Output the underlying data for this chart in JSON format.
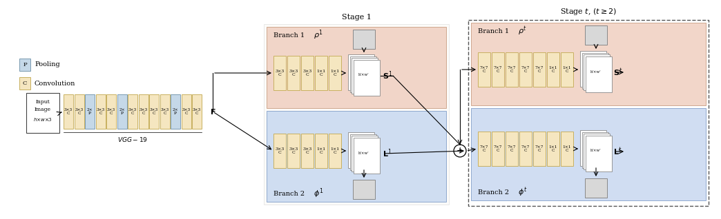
{
  "pool_color": "#c5d8e8",
  "conv_color": "#f5e6c0",
  "pool_border": "#7a9ab0",
  "conv_border": "#c8b060",
  "branch1_bg": "#f0cfc0",
  "branch2_bg": "#c8d8f0",
  "legend_pooling": "Pooling",
  "legend_conv": "Convolution",
  "title_stage1": "Stage 1",
  "title_stage2": "Stage $t$, $(t \\geq 2)$",
  "vgg_blocks": [
    {
      "label": "3×3\nC",
      "type": "conv"
    },
    {
      "label": "3×3\nC",
      "type": "conv"
    },
    {
      "label": "2×\nP",
      "type": "pool"
    },
    {
      "label": "3×3\nC",
      "type": "conv"
    },
    {
      "label": "3×3\nC",
      "type": "conv"
    },
    {
      "label": "2×\nP",
      "type": "pool"
    },
    {
      "label": "3×3\nC",
      "type": "conv"
    },
    {
      "label": "3×3\nC",
      "type": "conv"
    },
    {
      "label": "3×3\nC",
      "type": "conv"
    },
    {
      "label": "3×3\nC",
      "type": "conv"
    },
    {
      "label": "2×\nP",
      "type": "pool"
    },
    {
      "label": "3×3\nC",
      "type": "conv"
    },
    {
      "label": "3×3\nC",
      "type": "conv"
    }
  ],
  "s1b1_blocks": [
    {
      "label": "3×3\nC",
      "type": "conv"
    },
    {
      "label": "3×3\nC",
      "type": "conv"
    },
    {
      "label": "3×3\nC",
      "type": "conv"
    },
    {
      "label": "1×1\nC",
      "type": "conv"
    },
    {
      "label": "1×1\nC",
      "type": "conv"
    }
  ],
  "s1b2_blocks": [
    {
      "label": "3×3\nC",
      "type": "conv"
    },
    {
      "label": "3×3\nC",
      "type": "conv"
    },
    {
      "label": "3×3\nC",
      "type": "conv"
    },
    {
      "label": "1×1\nC",
      "type": "conv"
    },
    {
      "label": "1×1\nC",
      "type": "conv"
    }
  ],
  "s2b1_blocks": [
    {
      "label": "7×7\nC",
      "type": "conv"
    },
    {
      "label": "7×7\nC",
      "type": "conv"
    },
    {
      "label": "7×7\nC",
      "type": "conv"
    },
    {
      "label": "7×7\nC",
      "type": "conv"
    },
    {
      "label": "7×7\nC",
      "type": "conv"
    },
    {
      "label": "1×1\nC",
      "type": "conv"
    },
    {
      "label": "1×1\nC",
      "type": "conv"
    }
  ],
  "s2b2_blocks": [
    {
      "label": "7×7\nC",
      "type": "conv"
    },
    {
      "label": "7×7\nC",
      "type": "conv"
    },
    {
      "label": "7×7\nC",
      "type": "conv"
    },
    {
      "label": "7×7\nC",
      "type": "conv"
    },
    {
      "label": "7×7\nC",
      "type": "conv"
    },
    {
      "label": "1×1\nC",
      "type": "conv"
    },
    {
      "label": "1×1\nC",
      "type": "conv"
    }
  ]
}
